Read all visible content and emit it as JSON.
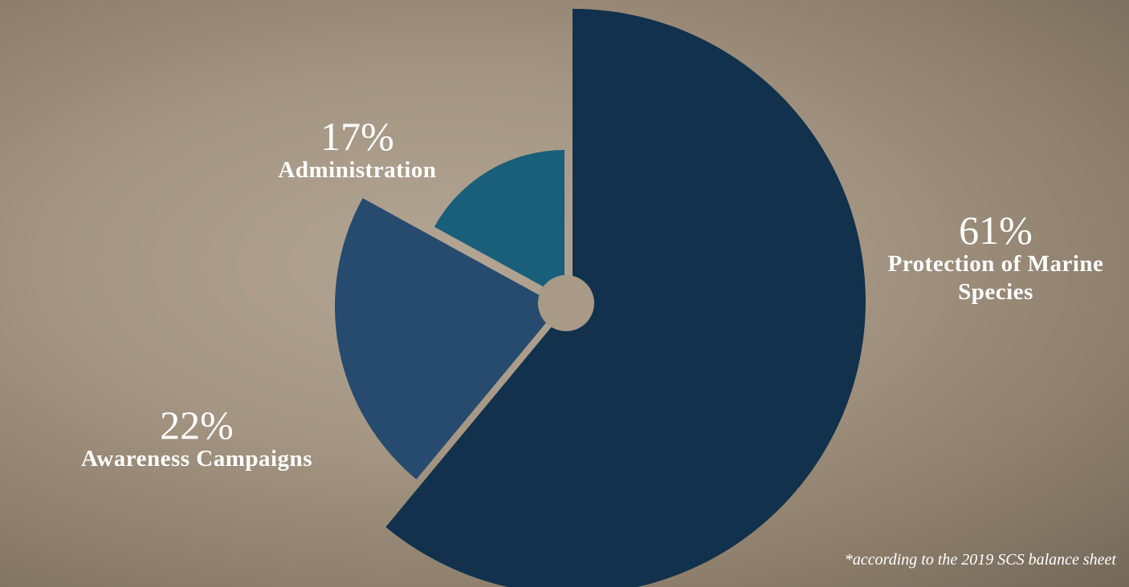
{
  "chart_data": {
    "type": "pie",
    "categories": [
      "Protection of Marine Species",
      "Awareness Campaigns",
      "Administration"
    ],
    "values": [
      61,
      22,
      17
    ],
    "value_labels": [
      "61%",
      "22%",
      "17%"
    ],
    "colors": [
      "#12314c",
      "#264b6e",
      "#1a5f7a"
    ],
    "note": "*according to the 2019 SCS balance sheet"
  }
}
